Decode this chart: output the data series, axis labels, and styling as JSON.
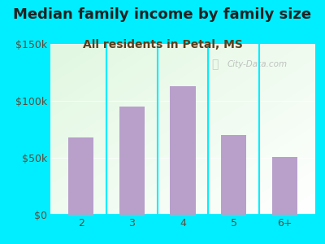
{
  "title": "Median family income by family size",
  "subtitle": "All residents in Petal, MS",
  "categories": [
    "2",
    "3",
    "4",
    "5",
    "6+"
  ],
  "values": [
    68000,
    95000,
    113000,
    70000,
    51000
  ],
  "bar_color": "#b8a0cb",
  "background_outer": "#00eeff",
  "title_color": "#222222",
  "subtitle_color": "#5a3e1b",
  "tick_label_color": "#5a4a3a",
  "ylim": [
    0,
    150000
  ],
  "yticks": [
    0,
    50000,
    100000,
    150000
  ],
  "ytick_labels": [
    "$0",
    "$50k",
    "$100k",
    "$150k"
  ],
  "title_fontsize": 13,
  "subtitle_fontsize": 10,
  "watermark": "City-Data.com"
}
